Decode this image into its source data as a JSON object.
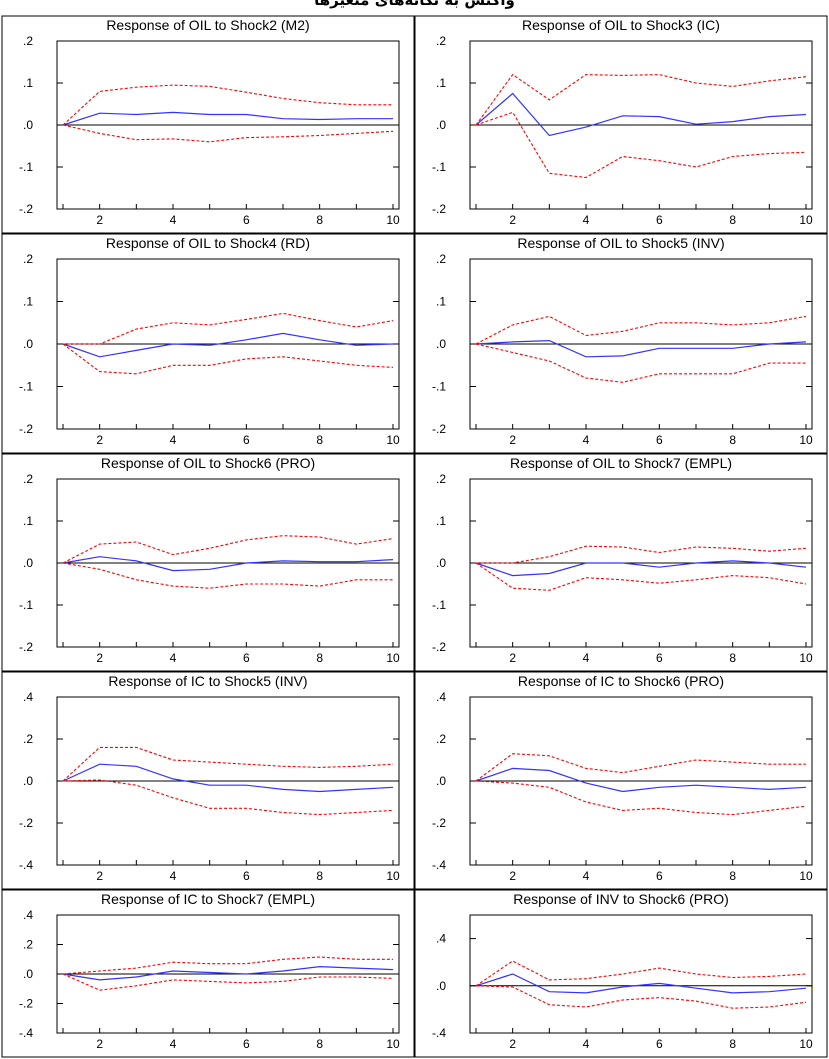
{
  "header": {
    "text": "واکنش به تکانه‌های متغیرها"
  },
  "colors": {
    "response": "#3333ff",
    "band": "#ff0000",
    "axis": "#000000",
    "zero_line": "#000000"
  },
  "chart_data": [
    {
      "type": "line",
      "title": "Response of OIL to Shock2 (M2)",
      "x": [
        1,
        2,
        3,
        4,
        5,
        6,
        7,
        8,
        9,
        10
      ],
      "ylim": [
        -0.2,
        0.2
      ],
      "yticks": [
        {
          "v": 0.2,
          "l": ".2"
        },
        {
          "v": 0.1,
          "l": ".1"
        },
        {
          "v": 0,
          "l": ".0"
        },
        {
          "v": -0.1,
          "l": "-.1"
        },
        {
          "v": -0.2,
          "l": "-.2"
        }
      ],
      "xticks": [
        "2",
        "4",
        "6",
        "8",
        "10"
      ],
      "series": [
        {
          "role": "response",
          "values": [
            0,
            0.028,
            0.025,
            0.03,
            0.025,
            0.025,
            0.015,
            0.013,
            0.015,
            0.015
          ]
        },
        {
          "role": "upper",
          "values": [
            0,
            0.08,
            0.09,
            0.095,
            0.092,
            0.078,
            0.063,
            0.053,
            0.048,
            0.048
          ]
        },
        {
          "role": "lower",
          "values": [
            0,
            -0.02,
            -0.035,
            -0.033,
            -0.04,
            -0.03,
            -0.028,
            -0.025,
            -0.02,
            -0.015
          ]
        }
      ]
    },
    {
      "type": "line",
      "title": "Response of OIL to Shock3 (IC)",
      "x": [
        1,
        2,
        3,
        4,
        5,
        6,
        7,
        8,
        9,
        10
      ],
      "ylim": [
        -0.2,
        0.2
      ],
      "yticks": [
        {
          "v": 0.2,
          "l": ".2"
        },
        {
          "v": 0.1,
          "l": ".1"
        },
        {
          "v": 0,
          "l": ".0"
        },
        {
          "v": -0.1,
          "l": "-.1"
        },
        {
          "v": -0.2,
          "l": "-.2"
        }
      ],
      "xticks": [
        "2",
        "4",
        "6",
        "8",
        "10"
      ],
      "series": [
        {
          "role": "response",
          "values": [
            0,
            0.075,
            -0.025,
            -0.005,
            0.022,
            0.02,
            0.002,
            0.008,
            0.02,
            0.025
          ]
        },
        {
          "role": "upper",
          "values": [
            0,
            0.12,
            0.06,
            0.12,
            0.118,
            0.12,
            0.1,
            0.092,
            0.105,
            0.115
          ]
        },
        {
          "role": "lower",
          "values": [
            0,
            0.03,
            -0.115,
            -0.125,
            -0.075,
            -0.085,
            -0.1,
            -0.075,
            -0.068,
            -0.065
          ]
        }
      ]
    },
    {
      "type": "line",
      "title": "Response of OIL to Shock4 (RD)",
      "x": [
        1,
        2,
        3,
        4,
        5,
        6,
        7,
        8,
        9,
        10
      ],
      "ylim": [
        -0.2,
        0.2
      ],
      "yticks": [
        {
          "v": 0.2,
          "l": ".2"
        },
        {
          "v": 0.1,
          "l": ".1"
        },
        {
          "v": 0,
          "l": ".0"
        },
        {
          "v": -0.1,
          "l": "-.1"
        },
        {
          "v": -0.2,
          "l": "-.2"
        }
      ],
      "xticks": [
        "2",
        "4",
        "6",
        "8",
        "10"
      ],
      "series": [
        {
          "role": "response",
          "values": [
            0,
            -0.03,
            -0.015,
            0,
            -0.003,
            0.01,
            0.025,
            0.01,
            -0.003,
            0
          ]
        },
        {
          "role": "upper",
          "values": [
            0,
            0,
            0.035,
            0.05,
            0.045,
            0.058,
            0.072,
            0.055,
            0.04,
            0.055
          ]
        },
        {
          "role": "lower",
          "values": [
            0,
            -0.065,
            -0.07,
            -0.05,
            -0.05,
            -0.035,
            -0.03,
            -0.04,
            -0.05,
            -0.055
          ]
        }
      ]
    },
    {
      "type": "line",
      "title": "Response of OIL to Shock5 (INV)",
      "x": [
        1,
        2,
        3,
        4,
        5,
        6,
        7,
        8,
        9,
        10
      ],
      "ylim": [
        -0.2,
        0.2
      ],
      "yticks": [
        {
          "v": 0.2,
          "l": ".2"
        },
        {
          "v": 0.1,
          "l": ".1"
        },
        {
          "v": 0,
          "l": ".0"
        },
        {
          "v": -0.1,
          "l": "-.1"
        },
        {
          "v": -0.2,
          "l": "-.2"
        }
      ],
      "xticks": [
        "2",
        "4",
        "6",
        "8",
        "10"
      ],
      "series": [
        {
          "role": "response",
          "values": [
            0,
            0.005,
            0.008,
            -0.03,
            -0.028,
            -0.01,
            -0.01,
            -0.01,
            0,
            0.005
          ]
        },
        {
          "role": "upper",
          "values": [
            0,
            0.045,
            0.065,
            0.02,
            0.03,
            0.05,
            0.05,
            0.045,
            0.05,
            0.065
          ]
        },
        {
          "role": "lower",
          "values": [
            0,
            -0.02,
            -0.04,
            -0.08,
            -0.09,
            -0.07,
            -0.07,
            -0.07,
            -0.045,
            -0.045
          ]
        }
      ]
    },
    {
      "type": "line",
      "title": "Response of OIL to Shock6 (PRO)",
      "x": [
        1,
        2,
        3,
        4,
        5,
        6,
        7,
        8,
        9,
        10
      ],
      "ylim": [
        -0.2,
        0.2
      ],
      "yticks": [
        {
          "v": 0.2,
          "l": ".2"
        },
        {
          "v": 0.1,
          "l": ".1"
        },
        {
          "v": 0,
          "l": ".0"
        },
        {
          "v": -0.1,
          "l": "-.1"
        },
        {
          "v": -0.2,
          "l": "-.2"
        }
      ],
      "xticks": [
        "2",
        "4",
        "6",
        "8",
        "10"
      ],
      "series": [
        {
          "role": "response",
          "values": [
            0,
            0.015,
            0.005,
            -0.018,
            -0.015,
            0,
            0.005,
            0.003,
            0.003,
            0.008
          ]
        },
        {
          "role": "upper",
          "values": [
            0,
            0.045,
            0.05,
            0.02,
            0.035,
            0.055,
            0.065,
            0.062,
            0.045,
            0.058
          ]
        },
        {
          "role": "lower",
          "values": [
            0,
            -0.015,
            -0.04,
            -0.055,
            -0.06,
            -0.05,
            -0.05,
            -0.055,
            -0.04,
            -0.04
          ]
        }
      ]
    },
    {
      "type": "line",
      "title": "Response of OIL to Shock7 (EMPL)",
      "x": [
        1,
        2,
        3,
        4,
        5,
        6,
        7,
        8,
        9,
        10
      ],
      "ylim": [
        -0.2,
        0.2
      ],
      "yticks": [
        {
          "v": 0.2,
          "l": ".2"
        },
        {
          "v": 0.1,
          "l": ".1"
        },
        {
          "v": 0,
          "l": ".0"
        },
        {
          "v": -0.1,
          "l": "-.1"
        },
        {
          "v": -0.2,
          "l": "-.2"
        }
      ],
      "xticks": [
        "2",
        "4",
        "6",
        "8",
        "10"
      ],
      "series": [
        {
          "role": "response",
          "values": [
            0,
            -0.03,
            -0.025,
            0,
            0,
            -0.01,
            0,
            0.005,
            0,
            -0.01
          ]
        },
        {
          "role": "upper",
          "values": [
            0,
            0,
            0.015,
            0.04,
            0.038,
            0.025,
            0.038,
            0.035,
            0.028,
            0.035
          ]
        },
        {
          "role": "lower",
          "values": [
            0,
            -0.06,
            -0.065,
            -0.035,
            -0.04,
            -0.048,
            -0.04,
            -0.03,
            -0.035,
            -0.05
          ]
        }
      ]
    },
    {
      "type": "line",
      "title": "Response of IC to Shock5 (INV)",
      "x": [
        1,
        2,
        3,
        4,
        5,
        6,
        7,
        8,
        9,
        10
      ],
      "ylim": [
        -0.4,
        0.4
      ],
      "yticks": [
        {
          "v": 0.4,
          "l": ".4"
        },
        {
          "v": 0.2,
          "l": ".2"
        },
        {
          "v": 0,
          "l": ".0"
        },
        {
          "v": -0.2,
          "l": "-.2"
        },
        {
          "v": -0.4,
          "l": "-.4"
        }
      ],
      "xticks": [
        "2",
        "4",
        "6",
        "8",
        "10"
      ],
      "series": [
        {
          "role": "response",
          "values": [
            0,
            0.08,
            0.07,
            0.01,
            -0.02,
            -0.02,
            -0.04,
            -0.05,
            -0.04,
            -0.03
          ]
        },
        {
          "role": "upper",
          "values": [
            0,
            0.16,
            0.16,
            0.1,
            0.09,
            0.08,
            0.07,
            0.065,
            0.07,
            0.08
          ]
        },
        {
          "role": "lower",
          "values": [
            0,
            0.005,
            -0.02,
            -0.08,
            -0.13,
            -0.13,
            -0.15,
            -0.16,
            -0.15,
            -0.14
          ]
        }
      ]
    },
    {
      "type": "line",
      "title": "Response of IC to Shock6 (PRO)",
      "x": [
        1,
        2,
        3,
        4,
        5,
        6,
        7,
        8,
        9,
        10
      ],
      "ylim": [
        -0.4,
        0.4
      ],
      "yticks": [
        {
          "v": 0.4,
          "l": ".4"
        },
        {
          "v": 0.2,
          "l": ".2"
        },
        {
          "v": 0,
          "l": ".0"
        },
        {
          "v": -0.2,
          "l": "-.2"
        },
        {
          "v": -0.4,
          "l": "-.4"
        }
      ],
      "xticks": [
        "2",
        "4",
        "6",
        "8",
        "10"
      ],
      "series": [
        {
          "role": "response",
          "values": [
            0,
            0.06,
            0.05,
            -0.01,
            -0.05,
            -0.03,
            -0.02,
            -0.03,
            -0.04,
            -0.03
          ]
        },
        {
          "role": "upper",
          "values": [
            0,
            0.13,
            0.12,
            0.06,
            0.04,
            0.07,
            0.1,
            0.09,
            0.08,
            0.08
          ]
        },
        {
          "role": "lower",
          "values": [
            0,
            -0.01,
            -0.03,
            -0.1,
            -0.14,
            -0.13,
            -0.15,
            -0.16,
            -0.14,
            -0.12
          ]
        }
      ]
    },
    {
      "type": "line",
      "title": "Response of IC to Shock7 (EMPL)",
      "x": [
        1,
        2,
        3,
        4,
        5,
        6,
        7,
        8,
        9,
        10
      ],
      "ylim": [
        -0.4,
        0.4
      ],
      "yticks": [
        {
          "v": 0.4,
          "l": ".4"
        },
        {
          "v": 0.2,
          "l": ".2"
        },
        {
          "v": 0,
          "l": ".0"
        },
        {
          "v": -0.2,
          "l": "-.2"
        },
        {
          "v": -0.4,
          "l": "-.4"
        }
      ],
      "xticks": [
        "2",
        "4",
        "6",
        "8",
        "10"
      ],
      "series": [
        {
          "role": "response",
          "values": [
            0,
            -0.04,
            -0.02,
            0.02,
            0.01,
            0,
            0.02,
            0.05,
            0.04,
            0.03
          ]
        },
        {
          "role": "upper",
          "values": [
            0,
            0.02,
            0.04,
            0.08,
            0.07,
            0.07,
            0.1,
            0.115,
            0.1,
            0.1
          ]
        },
        {
          "role": "lower",
          "values": [
            0,
            -0.11,
            -0.08,
            -0.04,
            -0.05,
            -0.06,
            -0.05,
            -0.02,
            -0.02,
            -0.03
          ]
        }
      ]
    },
    {
      "type": "line",
      "title": "Response of INV to Shock6 (PRO)",
      "x": [
        1,
        2,
        3,
        4,
        5,
        6,
        7,
        8,
        9,
        10
      ],
      "ylim": [
        -0.4,
        0.6
      ],
      "yticks": [
        {
          "v": 0.4,
          "l": ".4"
        },
        {
          "v": 0,
          "l": ".0"
        },
        {
          "v": -0.4,
          "l": "-.4"
        }
      ],
      "xticks": [
        "2",
        "4",
        "6",
        "8",
        "10"
      ],
      "series": [
        {
          "role": "response",
          "values": [
            0,
            0.1,
            -0.05,
            -0.06,
            -0.01,
            0.02,
            -0.02,
            -0.06,
            -0.05,
            -0.02
          ]
        },
        {
          "role": "upper",
          "values": [
            0,
            0.21,
            0.05,
            0.06,
            0.1,
            0.15,
            0.1,
            0.07,
            0.08,
            0.1
          ]
        },
        {
          "role": "lower",
          "values": [
            0,
            -0.01,
            -0.16,
            -0.18,
            -0.12,
            -0.1,
            -0.13,
            -0.19,
            -0.18,
            -0.14
          ]
        }
      ]
    }
  ]
}
